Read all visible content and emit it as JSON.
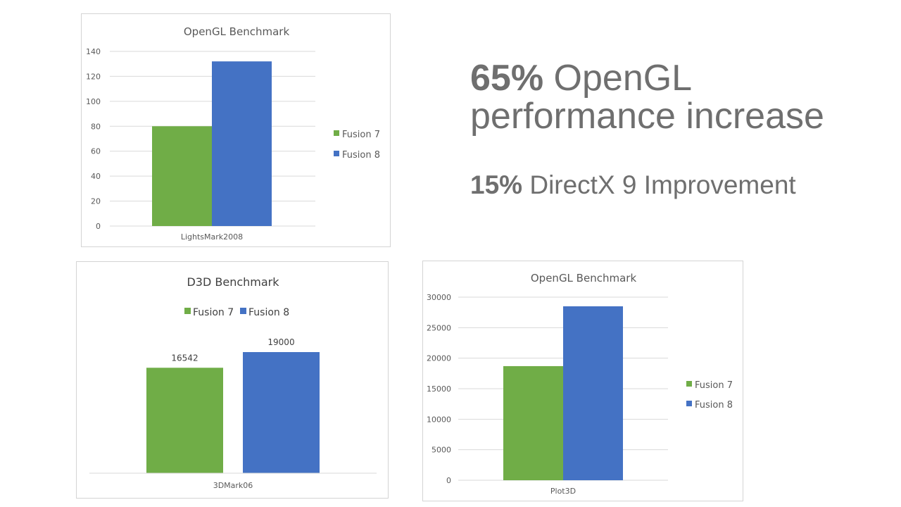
{
  "colors": {
    "fusion7": "#70ad47",
    "fusion8": "#4472c4",
    "text": "#6f6f6f"
  },
  "headline": {
    "percent": "65%",
    "text": " OpenGL performance increase"
  },
  "subline": {
    "percent": "15%",
    "text": " DirectX 9 Improvement"
  },
  "chart_data": [
    {
      "type": "bar",
      "title": "OpenGL Benchmark",
      "categories": [
        "LightsMark2008"
      ],
      "series": [
        {
          "name": "Fusion 7",
          "values": [
            80
          ]
        },
        {
          "name": "Fusion 8",
          "values": [
            132
          ]
        }
      ],
      "ylim": [
        0,
        140
      ],
      "yticks": [
        "0",
        "20",
        "40",
        "60",
        "80",
        "100",
        "120",
        "140"
      ],
      "legend": "right",
      "grid": true
    },
    {
      "type": "bar",
      "title": "D3D Benchmark",
      "categories": [
        "3DMark06"
      ],
      "series": [
        {
          "name": "Fusion 7",
          "values": [
            16542
          ]
        },
        {
          "name": "Fusion 8",
          "values": [
            19000
          ]
        }
      ],
      "data_labels": [
        "16542",
        "19000"
      ],
      "legend": "top",
      "grid": false
    },
    {
      "type": "bar",
      "title": "OpenGL Benchmark",
      "categories": [
        "Plot3D"
      ],
      "series": [
        {
          "name": "Fusion 7",
          "values": [
            18700
          ]
        },
        {
          "name": "Fusion 8",
          "values": [
            28500
          ]
        }
      ],
      "ylim": [
        0,
        30000
      ],
      "yticks": [
        "0",
        "5000",
        "10000",
        "15000",
        "20000",
        "25000",
        "30000"
      ],
      "legend": "right",
      "grid": true
    }
  ]
}
